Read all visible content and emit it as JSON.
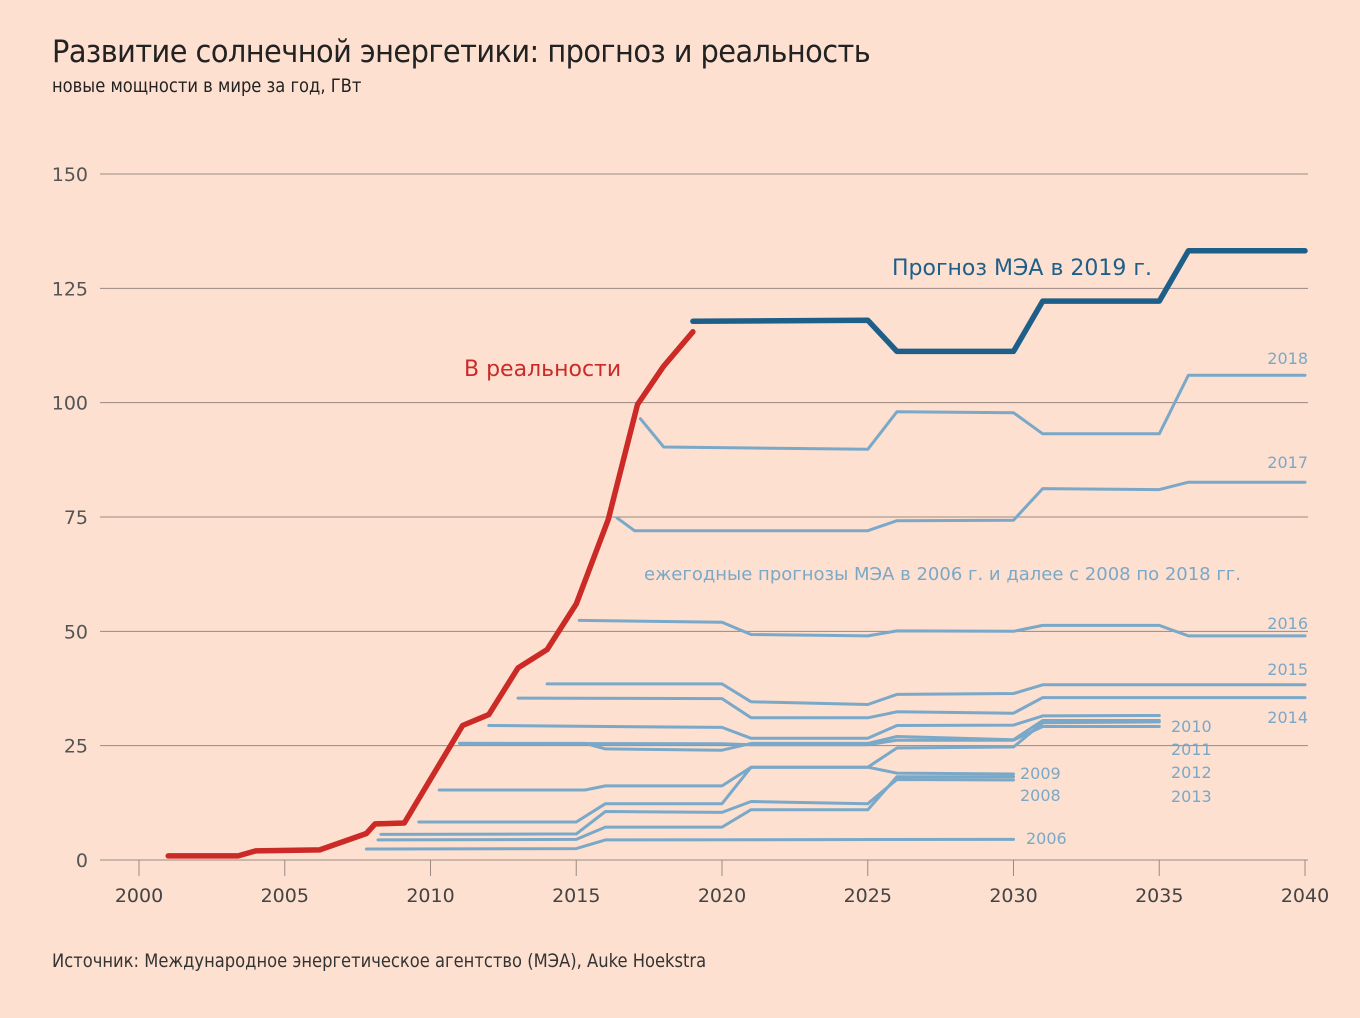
{
  "header": {
    "title": "Развитие солнечной энергетики: прогноз и реальность",
    "subtitle": "новые мощности в мире за год, ГВт"
  },
  "footer": {
    "source": "Источник: Международное энергетическое агентство (МЭА), Auke Hoekstra"
  },
  "colors": {
    "background": "#fde0d0",
    "actual": "#cc2a27",
    "forecast_2019": "#1e5f8a",
    "forecasts_old": "#7aa8c8",
    "grid": "#9a8a82"
  },
  "chart_data": {
    "type": "line",
    "title": "Развитие солнечной энергетики: прогноз и реальность",
    "subtitle": "новые мощности в мире за год, ГВт",
    "xlabel": "",
    "ylabel": "ГВт",
    "xlim": [
      1999.5,
      2040.5
    ],
    "ylim": [
      0,
      150
    ],
    "grid": true,
    "x_ticks": [
      "2000",
      "2005",
      "2010",
      "2015",
      "2020",
      "2025",
      "2030",
      "2035",
      "2040"
    ],
    "y_ticks": [
      "0",
      "25",
      "50",
      "75",
      "100",
      "125",
      "150"
    ],
    "annotations": {
      "actual": "В реальности",
      "forecast_2019": "Прогноз МЭА в 2019 г.",
      "old_forecasts": "ежегодные прогнозы МЭА в 2006 г. и далее с 2008 по 2018 гг."
    },
    "series": [
      {
        "name": "В реальности",
        "style": "actual",
        "points": [
          [
            2001,
            0.9
          ],
          [
            2003.4,
            0.9
          ],
          [
            2004,
            2
          ],
          [
            2006.2,
            2.2
          ],
          [
            2007.8,
            5.8
          ],
          [
            2008.1,
            7.9
          ],
          [
            2009.1,
            8.1
          ],
          [
            2011.1,
            29.4
          ],
          [
            2012,
            31.8
          ],
          [
            2013,
            42
          ],
          [
            2014,
            46
          ],
          [
            2015,
            56
          ],
          [
            2016.1,
            74.5
          ],
          [
            2017.1,
            99.6
          ],
          [
            2018,
            108
          ],
          [
            2019,
            115.5
          ]
        ]
      },
      {
        "name": "2019",
        "label": "",
        "style": "forecast_2019",
        "points": [
          [
            2019,
            117.8
          ],
          [
            2025,
            118
          ],
          [
            2026,
            111.2
          ],
          [
            2030,
            111.2
          ],
          [
            2031,
            122.2
          ],
          [
            2035,
            122.2
          ],
          [
            2036,
            133.2
          ],
          [
            2040,
            133.2
          ]
        ]
      },
      {
        "name": "2018",
        "label": "2018",
        "style": "old",
        "points": [
          [
            2017.2,
            96.5
          ],
          [
            2018,
            90.3
          ],
          [
            2025,
            89.8
          ],
          [
            2026,
            98
          ],
          [
            2030,
            97.8
          ],
          [
            2031,
            93.2
          ],
          [
            2035,
            93.2
          ],
          [
            2036,
            106
          ],
          [
            2040,
            106
          ]
        ]
      },
      {
        "name": "2017",
        "label": "2017",
        "style": "old",
        "points": [
          [
            2016.4,
            74.8
          ],
          [
            2017,
            72
          ],
          [
            2025,
            72
          ],
          [
            2026,
            74.2
          ],
          [
            2030,
            74.3
          ],
          [
            2031,
            81.2
          ],
          [
            2035,
            81
          ],
          [
            2036,
            82.6
          ],
          [
            2040,
            82.6
          ]
        ]
      },
      {
        "name": "2016",
        "label": "2016",
        "style": "old",
        "points": [
          [
            2015.1,
            52.4
          ],
          [
            2020,
            52
          ],
          [
            2021,
            49.3
          ],
          [
            2025,
            49
          ],
          [
            2026,
            50.1
          ],
          [
            2030,
            50
          ],
          [
            2031,
            51.3
          ],
          [
            2035,
            51.3
          ],
          [
            2036,
            49
          ],
          [
            2040,
            49
          ]
        ]
      },
      {
        "name": "2015",
        "label": "2015",
        "style": "old",
        "points": [
          [
            2014,
            38.5
          ],
          [
            2020,
            38.5
          ],
          [
            2021,
            34.6
          ],
          [
            2025,
            34
          ],
          [
            2026,
            36.2
          ],
          [
            2030,
            36.4
          ],
          [
            2031,
            38.3
          ],
          [
            2035,
            38.3
          ],
          [
            2040,
            38.3
          ]
        ]
      },
      {
        "name": "2014",
        "label": "2014",
        "style": "old",
        "points": [
          [
            2013,
            35.4
          ],
          [
            2020,
            35.3
          ],
          [
            2021,
            31.1
          ],
          [
            2025,
            31.1
          ],
          [
            2026,
            32.4
          ],
          [
            2030,
            32.1
          ],
          [
            2031,
            35.5
          ],
          [
            2035,
            35.5
          ],
          [
            2040,
            35.5
          ]
        ]
      },
      {
        "name": "2013",
        "label": "2013",
        "style": "old",
        "points": [
          [
            2012,
            29.4
          ],
          [
            2020,
            29
          ],
          [
            2021,
            26.6
          ],
          [
            2025,
            26.6
          ],
          [
            2026,
            29.4
          ],
          [
            2030,
            29.5
          ],
          [
            2031,
            31.5
          ],
          [
            2035,
            31.6
          ]
        ]
      },
      {
        "name": "2012",
        "label": "2012",
        "style": "old",
        "points": [
          [
            2011,
            25.5
          ],
          [
            2015.3,
            25.5
          ],
          [
            2016,
            24.3
          ],
          [
            2020,
            24
          ],
          [
            2021,
            25.5
          ],
          [
            2025,
            25.5
          ],
          [
            2026,
            27
          ],
          [
            2030,
            26.3
          ],
          [
            2031,
            30.5
          ],
          [
            2035,
            30.5
          ]
        ]
      },
      {
        "name": "2011",
        "label": "2011",
        "style": "old",
        "points": [
          [
            2011,
            25.5
          ],
          [
            2020,
            25.4
          ],
          [
            2021,
            25.2
          ],
          [
            2025,
            25.2
          ],
          [
            2026,
            26.2
          ],
          [
            2030,
            26.2
          ],
          [
            2031,
            29.2
          ],
          [
            2035,
            29.2
          ]
        ]
      },
      {
        "name": "2010",
        "label": "2010",
        "style": "old",
        "points": [
          [
            2010.3,
            15.3
          ],
          [
            2015.3,
            15.3
          ],
          [
            2016,
            16.2
          ],
          [
            2020,
            16.2
          ],
          [
            2021,
            20.3
          ],
          [
            2025,
            20.3
          ],
          [
            2026,
            24.5
          ],
          [
            2030,
            24.7
          ],
          [
            2031,
            30
          ],
          [
            2035,
            30.2
          ]
        ]
      },
      {
        "name": "2009",
        "label": "2009",
        "style": "old",
        "points": [
          [
            2009.6,
            8.3
          ],
          [
            2015,
            8.3
          ],
          [
            2016,
            12.3
          ],
          [
            2020,
            12.3
          ],
          [
            2021,
            20.3
          ],
          [
            2025,
            20.3
          ],
          [
            2026,
            19
          ],
          [
            2030,
            18.8
          ]
        ]
      },
      {
        "name": "2008",
        "label": "2008",
        "style": "old",
        "points": [
          [
            2008.3,
            5.6
          ],
          [
            2015,
            5.7
          ],
          [
            2016,
            10.6
          ],
          [
            2020,
            10.4
          ],
          [
            2021,
            12.8
          ],
          [
            2025,
            12.3
          ],
          [
            2026,
            17.6
          ],
          [
            2030,
            17.5
          ]
        ]
      },
      {
        "name": "2008b",
        "label": "",
        "style": "old",
        "points": [
          [
            2008.2,
            4.4
          ],
          [
            2015,
            4.5
          ],
          [
            2016,
            7.2
          ],
          [
            2020,
            7.2
          ],
          [
            2021,
            11
          ],
          [
            2025,
            11
          ],
          [
            2026,
            18.2
          ],
          [
            2030,
            18.2
          ]
        ]
      },
      {
        "name": "2006",
        "label": "2006",
        "style": "old",
        "points": [
          [
            2007.8,
            2.4
          ],
          [
            2015,
            2.5
          ],
          [
            2016,
            4.4
          ],
          [
            2030,
            4.5
          ]
        ]
      }
    ]
  }
}
